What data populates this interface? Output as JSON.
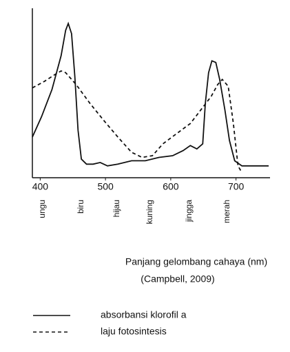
{
  "chart_data": {
    "type": "line",
    "xlabel": "Panjang gelombang cahaya (nm)",
    "source": "(Campbell, 2009)",
    "spectrum_labels": [
      "ungu",
      "biru",
      "hijau",
      "kuning",
      "jingga",
      "merah"
    ],
    "xlim": [
      388,
      750
    ],
    "xticks": [
      400,
      500,
      600,
      700
    ],
    "ylim": [
      0,
      100
    ],
    "series": [
      {
        "name": "absorbansi klorofil  a",
        "color": "#111111",
        "dash": "solid",
        "x": [
          388,
          402,
          418,
          432,
          439,
          443,
          448,
          453,
          458,
          463,
          471,
          481,
          492,
          503,
          519,
          540,
          561,
          582,
          603,
          619,
          630,
          640,
          649,
          653,
          658,
          663,
          669,
          675,
          683,
          690,
          698,
          709,
          750
        ],
        "values": [
          24,
          36,
          52,
          72,
          87,
          91,
          85,
          60,
          28,
          11,
          8,
          8,
          9,
          7,
          8,
          10,
          10,
          12,
          13,
          16,
          19,
          17,
          20,
          44,
          62,
          69,
          68,
          58,
          40,
          22,
          10,
          7,
          7
        ]
      },
      {
        "name": "laju fotosintesis",
        "color": "#111111",
        "dash": "dashed",
        "x": [
          388,
          407,
          423,
          432,
          439,
          455,
          476,
          497,
          519,
          540,
          556,
          572,
          588,
          609,
          630,
          646,
          662,
          672,
          679,
          688,
          696,
          703,
          709
        ],
        "values": [
          53,
          57,
          61,
          63,
          62,
          55,
          44,
          34,
          24,
          15,
          12,
          13,
          20,
          26,
          32,
          40,
          48,
          55,
          58,
          54,
          32,
          7,
          3
        ]
      }
    ]
  }
}
